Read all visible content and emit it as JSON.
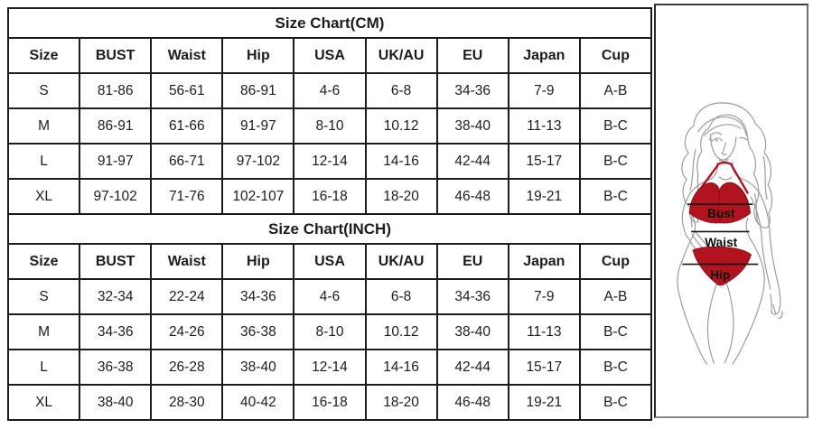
{
  "size_chart": {
    "column_headers": [
      "Size",
      "BUST",
      "Waist",
      "Hip",
      "USA",
      "UK/AU",
      "EU",
      "Japan",
      "Cup"
    ],
    "tables": [
      {
        "title": "Size Chart(CM)",
        "rows": [
          [
            "S",
            "81-86",
            "56-61",
            "86-91",
            "4-6",
            "6-8",
            "34-36",
            "7-9",
            "A-B"
          ],
          [
            "M",
            "86-91",
            "61-66",
            "91-97",
            "8-10",
            "10.12",
            "38-40",
            "11-13",
            "B-C"
          ],
          [
            "L",
            "91-97",
            "66-71",
            "97-102",
            "12-14",
            "14-16",
            "42-44",
            "15-17",
            "B-C"
          ],
          [
            "XL",
            "97-102",
            "71-76",
            "102-107",
            "16-18",
            "18-20",
            "46-48",
            "19-21",
            "B-C"
          ]
        ]
      },
      {
        "title": "Size Chart(INCH)",
        "rows": [
          [
            "S",
            "32-34",
            "22-24",
            "34-36",
            "4-6",
            "6-8",
            "34-36",
            "7-9",
            "A-B"
          ],
          [
            "M",
            "34-36",
            "24-26",
            "36-38",
            "8-10",
            "10.12",
            "38-40",
            "11-13",
            "B-C"
          ],
          [
            "L",
            "36-38",
            "26-28",
            "38-40",
            "12-14",
            "14-16",
            "42-44",
            "15-17",
            "B-C"
          ],
          [
            "XL",
            "38-40",
            "28-30",
            "40-42",
            "16-18",
            "18-20",
            "46-48",
            "19-21",
            "B-C"
          ]
        ]
      }
    ]
  },
  "figure": {
    "bust_label": "Bust",
    "waist_label": "Waist",
    "hip_label": "Hip",
    "bikini_color": "#b1141e",
    "bikini_edge_color": "#8c0f16",
    "line_art_color": "#9a9a9a",
    "measure_line_color": "#141414",
    "label_color": "#0d0d0d",
    "table_border_color": "#1b1b1b"
  }
}
